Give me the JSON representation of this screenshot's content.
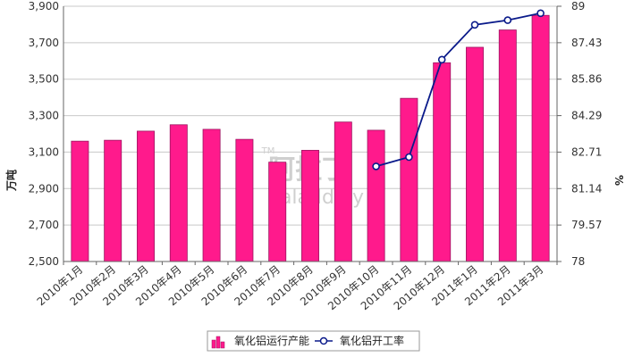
{
  "watermark": {
    "cn": "阿拉丁",
    "en": "aladdiny",
    "tm": "TM"
  },
  "legend_colors": {
    "bar": "#ff1a8c",
    "bar_stroke": "#9c1460",
    "line": "#0a1a8a",
    "marker_fill": "#ffffff"
  },
  "chart_data": {
    "type": "bar",
    "categories": [
      "2010年1月",
      "2010年2月",
      "2010年3月",
      "2010年4月",
      "2010年5月",
      "2010年6月",
      "2010年7月",
      "2010年8月",
      "2010年9月",
      "2010年10月",
      "2010年11月",
      "2010年12月",
      "2011年1月",
      "2011年2月",
      "2011年3月"
    ],
    "series": [
      {
        "name": "氧化铝运行产能",
        "type": "bar",
        "axis": "left",
        "color": "#ff1a8c",
        "values": [
          3160,
          3165,
          3215,
          3250,
          3225,
          3170,
          3045,
          3110,
          3265,
          3220,
          3395,
          3590,
          3675,
          3770,
          3850
        ]
      },
      {
        "name": "氧化铝开工率",
        "type": "line",
        "axis": "right",
        "color": "#0a1a8a",
        "values": [
          null,
          null,
          null,
          null,
          null,
          null,
          null,
          null,
          null,
          82.1,
          82.5,
          86.7,
          88.2,
          88.4,
          88.7
        ]
      }
    ],
    "ylabel": "万吨",
    "y2label": "%",
    "ylim": [
      2500,
      3900
    ],
    "yticks": [
      "2,500",
      "2,700",
      "2,900",
      "3,100",
      "3,300",
      "3,500",
      "3,700",
      "3,900"
    ],
    "y2lim": [
      78,
      89
    ],
    "y2ticks": [
      "78",
      "79.57",
      "81.14",
      "82.71",
      "84.29",
      "85.86",
      "87.43",
      "89"
    ],
    "grid": true,
    "legend_position": "bottom"
  }
}
